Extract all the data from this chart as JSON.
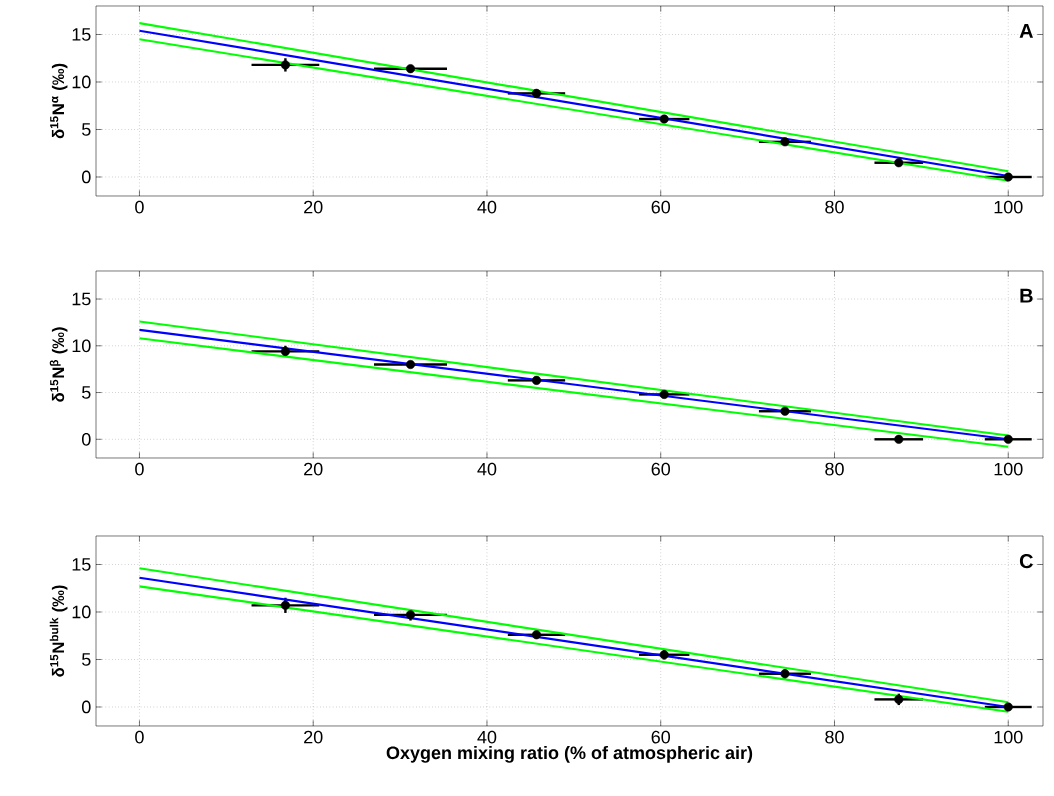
{
  "chart_data": [
    {
      "type": "scatter",
      "marker": "circle",
      "ylabel": "δ$^{15}$N$^{α}$ (‰)",
      "annotations": [
        "A"
      ],
      "xlim": [
        -5,
        104
      ],
      "ylim": [
        -2,
        18
      ],
      "xticks": [
        0,
        20,
        40,
        60,
        80,
        100
      ],
      "yticks": [
        0,
        5,
        10,
        15
      ],
      "grid": true,
      "series": [
        {
          "color": "#000000",
          "x": [
            16.8,
            31.2,
            45.7,
            60.4,
            74.3,
            87.4,
            100
          ],
          "values": [
            11.8,
            11.4,
            8.8,
            6.1,
            3.7,
            1.5,
            0
          ],
          "errors": [
            0.7,
            0.4,
            null,
            null,
            null,
            null,
            null
          ],
          "xerrors": [
            3.9,
            4.2,
            3.3,
            2.9,
            3.0,
            2.8,
            2.7
          ]
        },
        {
          "type": "line",
          "marker": "none",
          "color": "#0000ff",
          "x": [
            0,
            100
          ],
          "values": [
            15.4,
            0.1
          ]
        },
        {
          "type": "line",
          "marker": "none",
          "color": "#00ff00",
          "x": [
            0,
            100
          ],
          "values": [
            16.2,
            0.6
          ]
        },
        {
          "type": "line",
          "marker": "none",
          "color": "#00ff00",
          "x": [
            0,
            100
          ],
          "values": [
            14.5,
            -0.4
          ]
        }
      ]
    },
    {
      "type": "scatter",
      "marker": "circle",
      "ylabel": "δ$^{15}$N$^{β}$ (‰)",
      "annotations": [
        "B"
      ],
      "xlim": [
        -5,
        104
      ],
      "ylim": [
        -2,
        18
      ],
      "xticks": [
        0,
        20,
        40,
        60,
        80,
        100
      ],
      "yticks": [
        0,
        5,
        10,
        15
      ],
      "grid": true,
      "series": [
        {
          "color": "#000000",
          "x": [
            16.8,
            31.2,
            45.7,
            60.4,
            74.3,
            87.4,
            100
          ],
          "values": [
            9.4,
            8.0,
            6.3,
            4.8,
            3.0,
            0,
            0
          ],
          "errors": [
            0.6,
            null,
            null,
            null,
            null,
            null,
            null
          ],
          "xerrors": [
            3.9,
            4.2,
            3.3,
            2.9,
            3.0,
            2.8,
            2.7
          ]
        },
        {
          "type": "line",
          "marker": "none",
          "color": "#0000ff",
          "x": [
            0,
            100
          ],
          "values": [
            11.7,
            0
          ]
        },
        {
          "type": "line",
          "marker": "none",
          "color": "#00ff00",
          "x": [
            0,
            100
          ],
          "values": [
            12.6,
            0.4
          ]
        },
        {
          "type": "line",
          "marker": "none",
          "color": "#00ff00",
          "x": [
            0,
            100
          ],
          "values": [
            10.8,
            -0.8
          ]
        }
      ]
    },
    {
      "type": "scatter",
      "marker": "circle",
      "xlabel": "Oxygen mixing ratio (% of atmospheric air)",
      "ylabel": "δ$^{15}$N$^{bulk}$ (‰)",
      "annotations": [
        "C"
      ],
      "xlim": [
        -5,
        104
      ],
      "ylim": [
        -2,
        18
      ],
      "xticks": [
        0,
        20,
        40,
        60,
        80,
        100
      ],
      "yticks": [
        0,
        5,
        10,
        15
      ],
      "grid": true,
      "series": [
        {
          "color": "#000000",
          "x": [
            16.8,
            31.2,
            45.7,
            60.4,
            74.3,
            87.4,
            100
          ],
          "values": [
            10.7,
            9.7,
            7.6,
            5.5,
            3.5,
            0.8,
            0
          ],
          "errors": [
            0.8,
            0.6,
            0.4,
            0.5,
            0.5,
            0.6,
            0.4
          ],
          "xerrors": [
            3.9,
            4.2,
            3.3,
            2.9,
            3.0,
            2.8,
            2.7
          ]
        },
        {
          "type": "line",
          "marker": "none",
          "color": "#0000ff",
          "x": [
            0,
            100
          ],
          "values": [
            13.6,
            0
          ]
        },
        {
          "type": "line",
          "marker": "none",
          "color": "#00ff00",
          "x": [
            0,
            100
          ],
          "values": [
            14.6,
            0.5
          ]
        },
        {
          "type": "line",
          "marker": "none",
          "color": "#00ff00",
          "x": [
            0,
            100
          ],
          "values": [
            12.7,
            -0.5
          ]
        }
      ]
    }
  ]
}
